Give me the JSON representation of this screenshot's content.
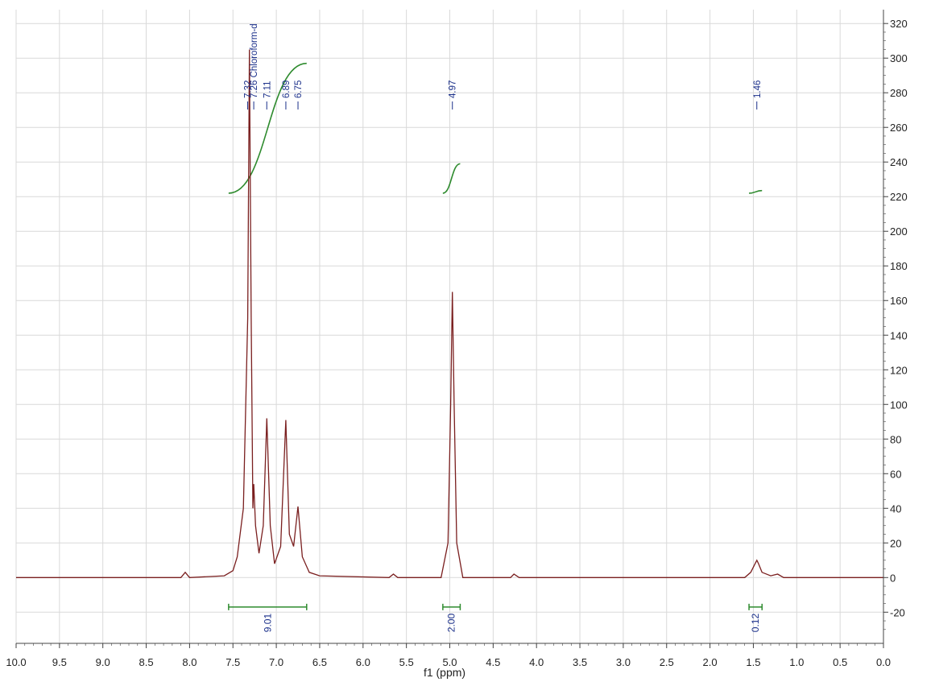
{
  "chart_data": {
    "type": "line",
    "title": "",
    "xlabel": "f1 (ppm)",
    "ylabel": "",
    "xlim": [
      10.0,
      0.0
    ],
    "ylim": [
      -38,
      328
    ],
    "x_ticks": [
      "10.0",
      "9.5",
      "9.0",
      "8.5",
      "8.0",
      "7.5",
      "7.0",
      "6.5",
      "6.0",
      "5.5",
      "5.0",
      "4.5",
      "4.0",
      "3.5",
      "3.0",
      "2.5",
      "2.0",
      "1.5",
      "1.0",
      "0.5",
      "0.0"
    ],
    "y_ticks": [
      "320",
      "300",
      "280",
      "260",
      "240",
      "220",
      "200",
      "180",
      "160",
      "140",
      "120",
      "100",
      "80",
      "60",
      "40",
      "20",
      "0",
      "-20"
    ],
    "grid": true,
    "colors": {
      "spectrum": "#7a1f1f",
      "integral": "#2e8b2e",
      "peak_label": "#1a2f8a",
      "grid": "#d9d9d9",
      "axis": "#444444"
    },
    "series": [
      {
        "points": [
          [
            10.0,
            0
          ],
          [
            8.1,
            0
          ],
          [
            8.05,
            3
          ],
          [
            8.0,
            0
          ],
          [
            7.6,
            1
          ],
          [
            7.5,
            4
          ],
          [
            7.45,
            12
          ],
          [
            7.38,
            40
          ],
          [
            7.33,
            150
          ],
          [
            7.31,
            305
          ],
          [
            7.29,
            150
          ],
          [
            7.27,
            40
          ],
          [
            7.26,
            54
          ],
          [
            7.24,
            30
          ],
          [
            7.2,
            14
          ],
          [
            7.15,
            30
          ],
          [
            7.11,
            92
          ],
          [
            7.07,
            30
          ],
          [
            7.02,
            8
          ],
          [
            6.95,
            18
          ],
          [
            6.89,
            91
          ],
          [
            6.85,
            25
          ],
          [
            6.8,
            18
          ],
          [
            6.75,
            41
          ],
          [
            6.7,
            12
          ],
          [
            6.62,
            3
          ],
          [
            6.5,
            1
          ],
          [
            5.7,
            0
          ],
          [
            5.65,
            2
          ],
          [
            5.6,
            0
          ],
          [
            5.1,
            0
          ],
          [
            5.02,
            20
          ],
          [
            4.99,
            100
          ],
          [
            4.97,
            165
          ],
          [
            4.95,
            100
          ],
          [
            4.92,
            20
          ],
          [
            4.85,
            0
          ],
          [
            4.3,
            0
          ],
          [
            4.26,
            2
          ],
          [
            4.2,
            0
          ],
          [
            1.6,
            0
          ],
          [
            1.53,
            3
          ],
          [
            1.48,
            8
          ],
          [
            1.46,
            10
          ],
          [
            1.44,
            8
          ],
          [
            1.4,
            3
          ],
          [
            1.3,
            1
          ],
          [
            1.22,
            2
          ],
          [
            1.15,
            0
          ],
          [
            0.0,
            0
          ]
        ]
      }
    ],
    "peak_labels": [
      "7.32",
      "7.26 Chloroform-d",
      "7.11",
      "6.89",
      "6.75",
      "4.97",
      "1.46"
    ],
    "integrals": [
      {
        "label": "9.01",
        "from": 7.55,
        "to": 6.65
      },
      {
        "label": "2.00",
        "from": 5.08,
        "to": 4.88
      },
      {
        "label": "0.12",
        "from": 1.55,
        "to": 1.4
      }
    ]
  }
}
